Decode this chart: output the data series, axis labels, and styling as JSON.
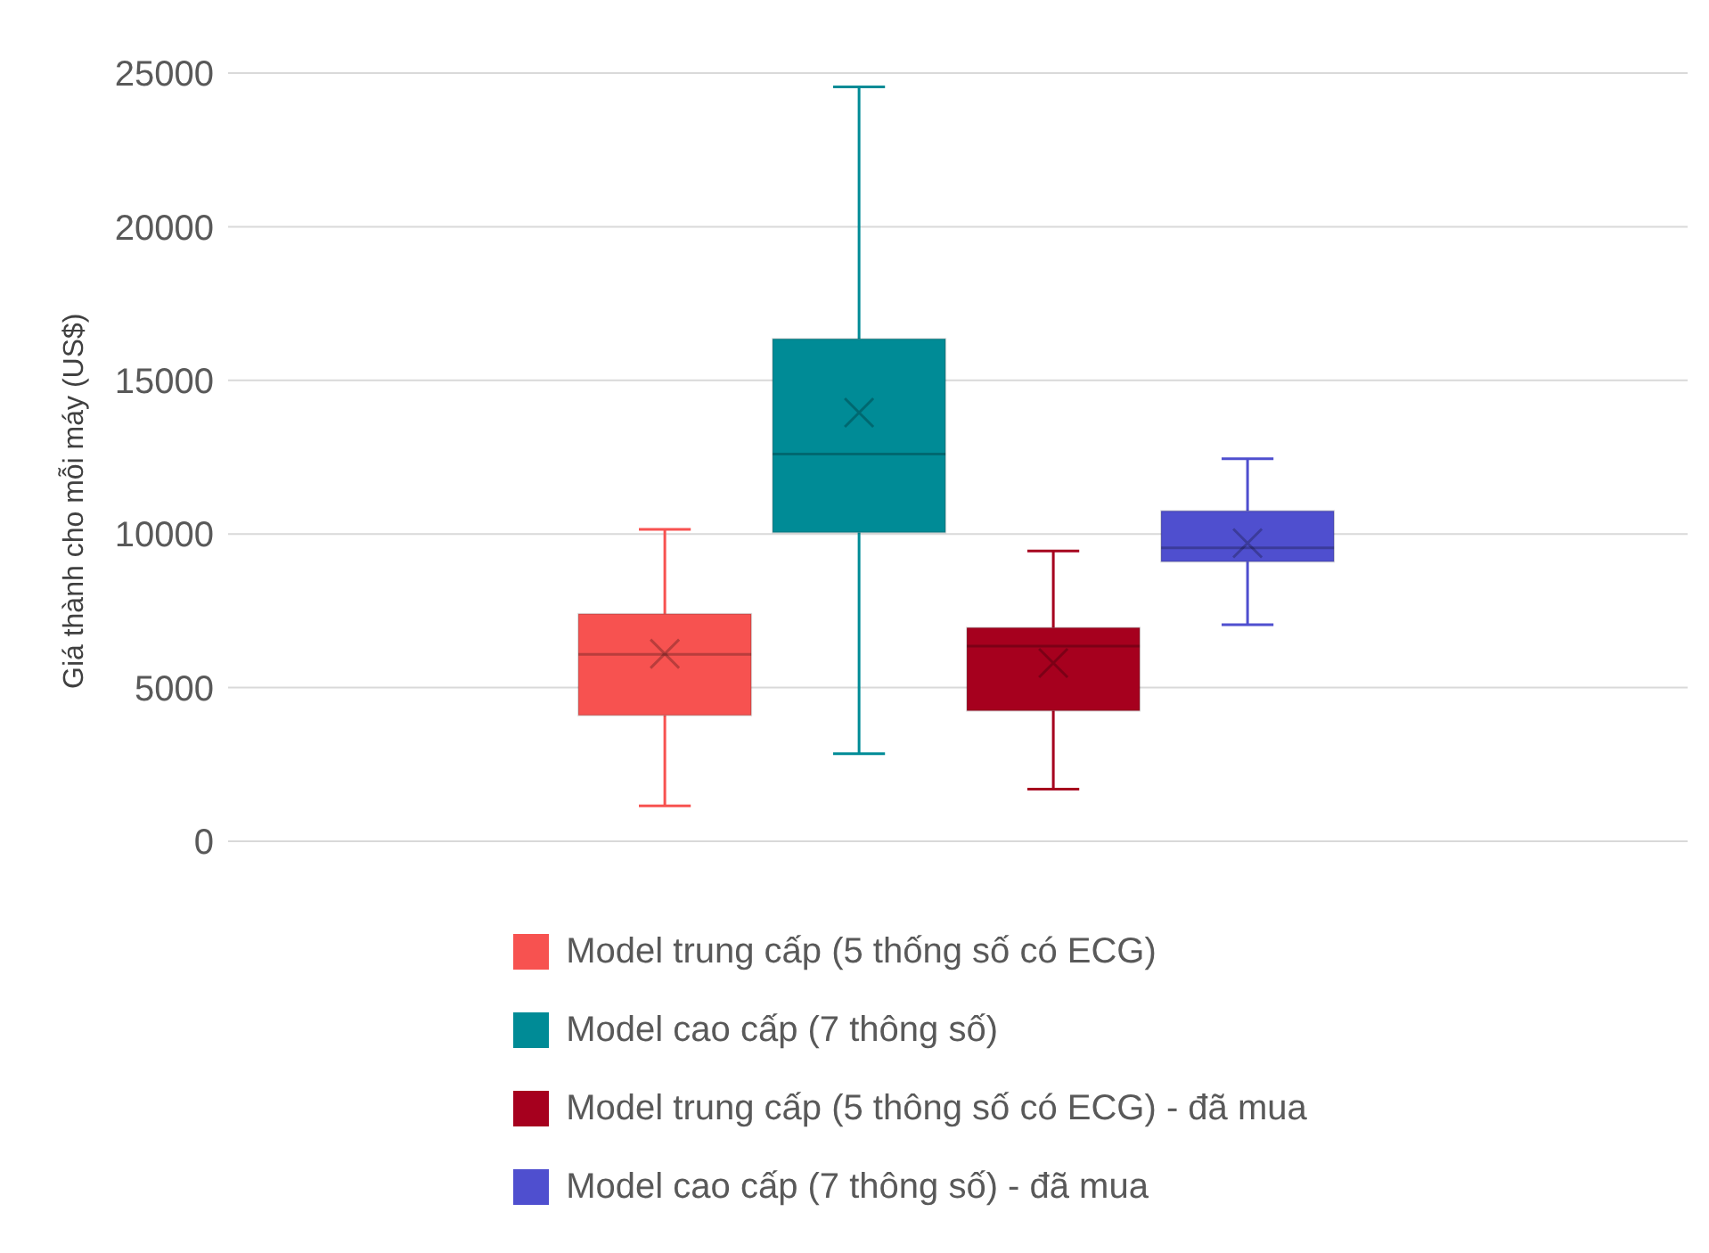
{
  "chart_data": {
    "type": "box",
    "ylabel": "Giá thành cho mỗi máy (US$)",
    "categories": [
      null
    ],
    "tick_labels": "y",
    "ylim": [
      0,
      25000
    ],
    "yticks": [
      0,
      5000,
      10000,
      15000,
      20000,
      25000
    ],
    "grid": "y",
    "legend": "bottom",
    "marker": "cross",
    "series": [
      {
        "name": "Model trung cấp (5 thống số có ECG)",
        "color": "#f75250",
        "boxes": [
          {
            "low": 1150,
            "q1": 4100,
            "median": 6080,
            "q3": 7400,
            "high": 10150,
            "mean": 6100
          }
        ]
      },
      {
        "name": "Model cao cấp (7 thông số)",
        "color": "#008b96",
        "boxes": [
          {
            "low": 2850,
            "q1": 10050,
            "median": 12600,
            "q3": 16350,
            "high": 24550,
            "mean": 13950
          }
        ]
      },
      {
        "name": "Model trung cấp (5 thông số có ECG) - đã mua",
        "color": "#a6001e",
        "boxes": [
          {
            "low": 1700,
            "q1": 4250,
            "median": 6350,
            "q3": 6950,
            "high": 9450,
            "mean": 5800
          }
        ]
      },
      {
        "name": "Model cao cấp (7 thông số) - đã mua",
        "color": "#4f4fcf",
        "boxes": [
          {
            "low": 7050,
            "q1": 9100,
            "median": 9550,
            "q3": 10750,
            "high": 12450,
            "mean": 9700
          }
        ]
      }
    ]
  }
}
